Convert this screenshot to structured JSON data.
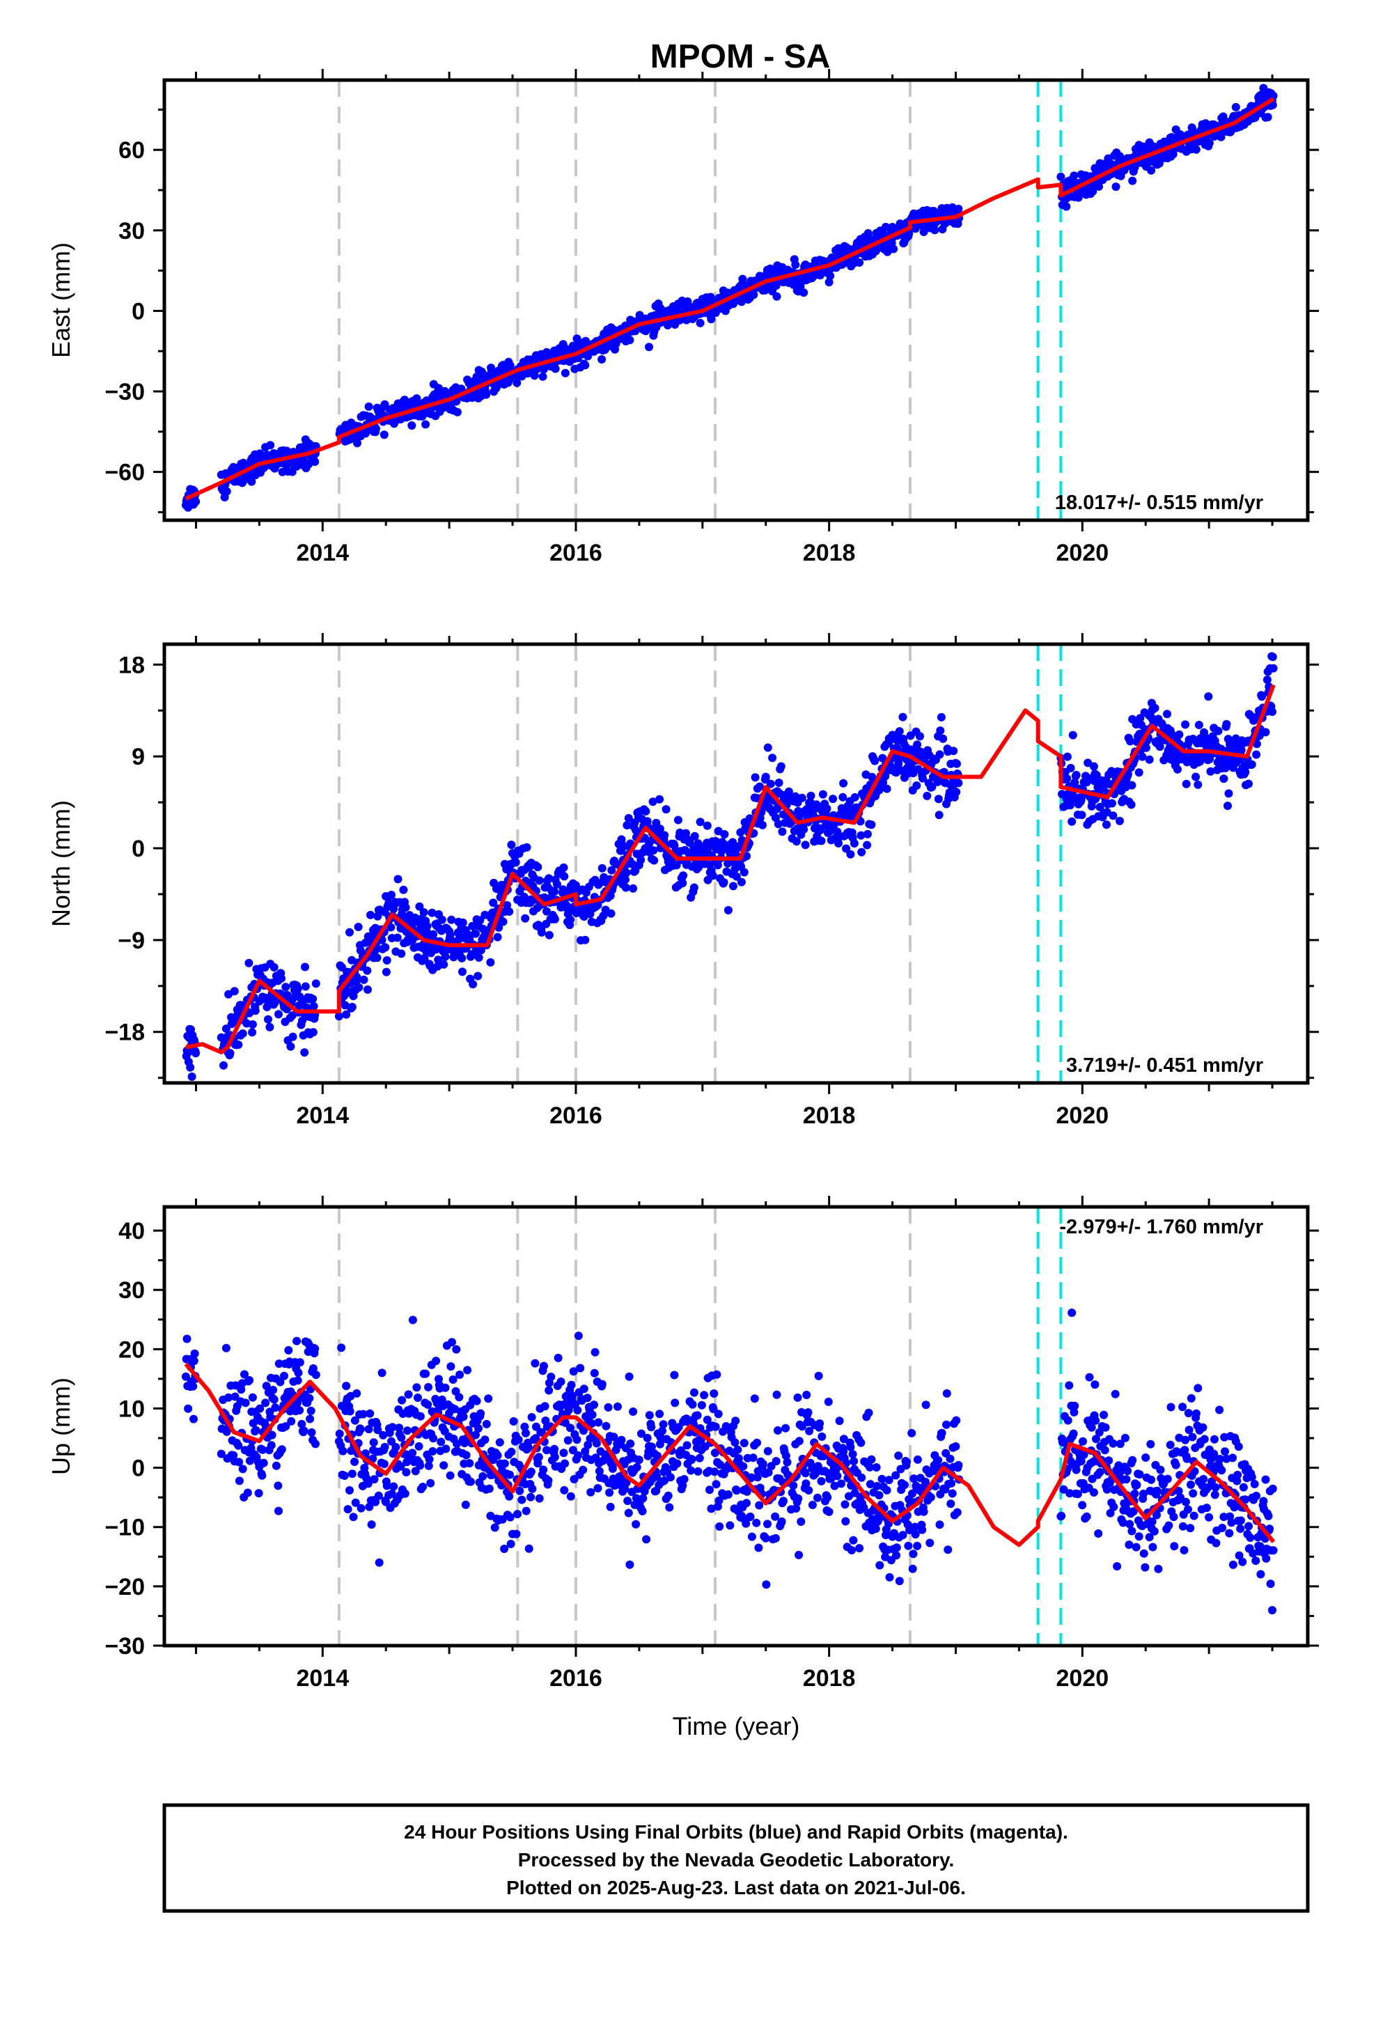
{
  "title": "MPOM - SA",
  "colors": {
    "final_orbits": "#0000ff",
    "model": "#ff0000",
    "antenna_change": "#00e5e5",
    "other_event": "#c8c8c8"
  },
  "footer": {
    "lines": [
      "24 Hour Positions Using Final Orbits (blue) and Rapid Orbits (magenta).",
      "Processed by the Nevada Geodetic Laboratory.",
      "Plotted on 2025-Aug-23. Last data on 2021-Jul-06."
    ]
  },
  "chart_data": [
    {
      "type": "scatter",
      "ylabel": "East (mm)",
      "xlabel": "",
      "xlim": [
        2012.75,
        2021.78
      ],
      "ylim": [
        -78,
        86
      ],
      "xticks": [
        2014,
        2016,
        2018,
        2020
      ],
      "yticks": [
        -60,
        -30,
        0,
        30,
        60
      ],
      "grid": false,
      "rate_label": "18.017+/- 0.515 mm/yr",
      "rate_position": "bottom-right",
      "gray_events": [
        2014.13,
        2015.54,
        2016.0,
        2017.1,
        2018.64
      ],
      "cyan_events": [
        2019.65,
        2019.83
      ],
      "data_ranges": [
        [
          2012.92,
          2013.0
        ],
        [
          2013.2,
          2013.95
        ],
        [
          2014.13,
          2019.03
        ],
        [
          2019.83,
          2021.51
        ]
      ],
      "series": [
        {
          "name": "",
          "kind": "model",
          "x": [
            2012.92,
            2013.2,
            2013.5,
            2013.9,
            2014.13,
            2014.13,
            2014.5,
            2015.0,
            2015.54,
            2016.0,
            2016.5,
            2017.0,
            2017.5,
            2018.0,
            2018.5,
            2018.64,
            2018.64,
            2019.0,
            2019.3,
            2019.65,
            2019.65,
            2019.83,
            2019.83,
            2020.3,
            2020.8,
            2021.2,
            2021.51
          ],
          "y": [
            -70,
            -64,
            -57,
            -53,
            -49,
            -47,
            -40,
            -33,
            -22,
            -16,
            -5,
            0,
            11,
            17,
            28,
            31,
            33,
            35,
            42,
            49,
            46,
            47,
            43,
            54,
            63,
            70,
            79
          ]
        },
        {
          "name": "",
          "kind": "points",
          "scatter_sd": 2.3,
          "density_per_year": 230
        }
      ]
    },
    {
      "type": "scatter",
      "ylabel": "North (mm)",
      "xlabel": "",
      "xlim": [
        2012.75,
        2021.78
      ],
      "ylim": [
        -23,
        20
      ],
      "xticks": [
        2014,
        2016,
        2018,
        2020
      ],
      "yticks": [
        -18,
        -9,
        0,
        9,
        18
      ],
      "grid": false,
      "rate_label": "3.719+/- 0.451 mm/yr",
      "rate_position": "bottom-right",
      "gray_events": [
        2014.13,
        2015.54,
        2016.0,
        2017.1,
        2018.64
      ],
      "cyan_events": [
        2019.65,
        2019.83
      ],
      "data_ranges": [
        [
          2012.92,
          2013.0
        ],
        [
          2013.2,
          2013.95
        ],
        [
          2014.13,
          2019.03
        ],
        [
          2019.83,
          2021.51
        ]
      ],
      "series": [
        {
          "name": "",
          "kind": "model",
          "x": [
            2012.92,
            2013.05,
            2013.2,
            2013.25,
            2013.5,
            2013.8,
            2014.13,
            2014.13,
            2014.35,
            2014.55,
            2014.8,
            2015.0,
            2015.3,
            2015.5,
            2015.75,
            2016.0,
            2016.0,
            2016.2,
            2016.55,
            2016.8,
            2017.0,
            2017.3,
            2017.5,
            2017.75,
            2017.95,
            2018.2,
            2018.5,
            2018.64,
            2018.64,
            2018.9,
            2019.2,
            2019.55,
            2019.65,
            2019.65,
            2019.83,
            2019.83,
            2020.2,
            2020.55,
            2020.8,
            2021.0,
            2021.3,
            2021.51
          ],
          "y": [
            -19.5,
            -19.2,
            -20,
            -19.5,
            -13,
            -16,
            -16,
            -14,
            -10.5,
            -6.5,
            -9,
            -9.5,
            -9.5,
            -2.5,
            -5.5,
            -4.5,
            -5.5,
            -5,
            2,
            -1,
            -1,
            -1,
            6,
            2.5,
            3,
            2.5,
            9.5,
            9,
            9,
            7,
            7,
            13.5,
            12.5,
            10.5,
            9,
            6,
            5,
            12,
            9.5,
            9.5,
            9,
            16
          ]
        },
        {
          "name": "",
          "kind": "points",
          "scatter_sd": 1.5,
          "density_per_year": 230
        }
      ]
    },
    {
      "type": "scatter",
      "ylabel": "Up (mm)",
      "xlabel": "Time (year)",
      "xlim": [
        2012.75,
        2021.78
      ],
      "ylim": [
        -30,
        44
      ],
      "xticks": [
        2014,
        2016,
        2018,
        2020
      ],
      "yticks": [
        -30,
        -20,
        -10,
        0,
        10,
        20,
        30,
        40
      ],
      "grid": false,
      "rate_label": "-2.979+/- 1.760 mm/yr",
      "rate_position": "top-right",
      "gray_events": [
        2014.13,
        2015.54,
        2016.0,
        2017.1,
        2018.64
      ],
      "cyan_events": [
        2019.65,
        2019.83
      ],
      "data_ranges": [
        [
          2012.92,
          2013.0
        ],
        [
          2013.2,
          2013.95
        ],
        [
          2014.13,
          2019.03
        ],
        [
          2019.83,
          2021.51
        ]
      ],
      "series": [
        {
          "name": "",
          "kind": "model",
          "x": [
            2012.92,
            2013.1,
            2013.3,
            2013.5,
            2013.7,
            2013.9,
            2014.1,
            2014.3,
            2014.5,
            2014.7,
            2014.9,
            2015.1,
            2015.3,
            2015.5,
            2015.7,
            2015.9,
            2016.0,
            2016.2,
            2016.4,
            2016.5,
            2016.7,
            2016.9,
            2017.1,
            2017.3,
            2017.5,
            2017.7,
            2017.9,
            2018.1,
            2018.3,
            2018.5,
            2018.7,
            2018.9,
            2019.1,
            2019.3,
            2019.5,
            2019.65,
            2019.65,
            2019.83,
            2019.9,
            2020.1,
            2020.3,
            2020.5,
            2020.7,
            2020.9,
            2021.1,
            2021.3,
            2021.51
          ],
          "y": [
            17.5,
            13,
            6,
            4.5,
            10,
            14.5,
            10,
            2,
            -1,
            5,
            9,
            7,
            1,
            -4,
            4,
            8.5,
            8.5,
            5,
            -1.5,
            -3,
            2,
            7,
            4,
            -1,
            -6,
            -2,
            4,
            0.5,
            -5,
            -9,
            -6,
            0,
            -3,
            -10,
            -13,
            -10,
            -9,
            -2,
            4,
            2.5,
            -3,
            -8.5,
            -4,
            1,
            -2.5,
            -7,
            -12.5
          ]
        },
        {
          "name": "",
          "kind": "points",
          "scatter_sd": 5.2,
          "density_per_year": 230
        }
      ]
    }
  ]
}
